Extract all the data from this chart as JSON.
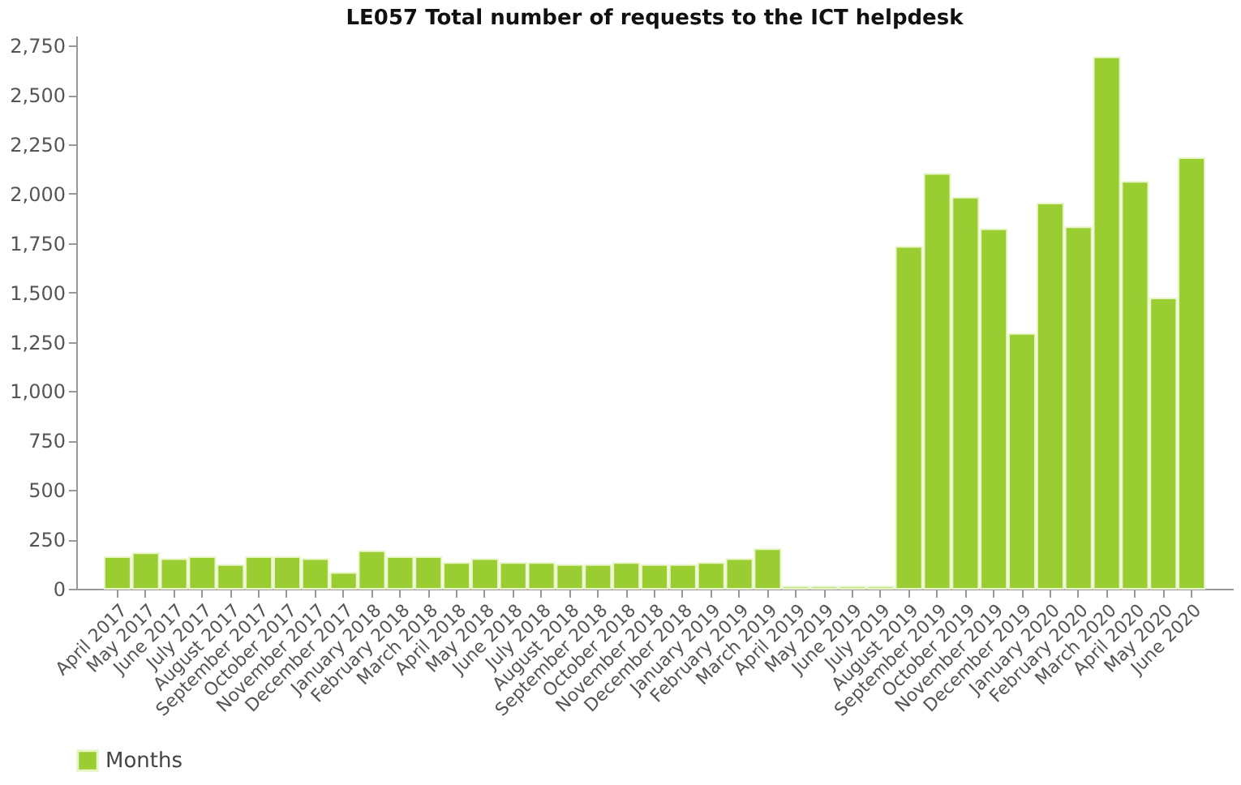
{
  "chart_data": {
    "type": "bar",
    "title": "LE057 Total number of requests to the ICT helpdesk",
    "categories": [
      "April 2017",
      "May 2017",
      "June 2017",
      "July 2017",
      "August 2017",
      "September 2017",
      "October 2017",
      "November 2017",
      "December 2017",
      "January 2018",
      "February 2018",
      "March 2018",
      "April 2018",
      "May 2018",
      "June 2018",
      "July 2018",
      "August 2018",
      "September 2018",
      "October 2018",
      "November 2018",
      "December 2018",
      "January 2019",
      "February 2019",
      "March 2019",
      "April 2019",
      "May 2019",
      "June 2019",
      "July 2019",
      "August 2019",
      "September 2019",
      "October 2019",
      "November 2019",
      "December 2019",
      "January 2020",
      "February 2020",
      "March 2020",
      "April 2020",
      "May 2020",
      "June 2020"
    ],
    "series": [
      {
        "name": "Months",
        "color": "#9acd32",
        "values": [
          160,
          180,
          150,
          160,
          120,
          160,
          160,
          150,
          80,
          190,
          160,
          160,
          130,
          150,
          130,
          130,
          120,
          120,
          130,
          120,
          120,
          130,
          150,
          200,
          10,
          10,
          10,
          10,
          1730,
          2100,
          1980,
          1820,
          1290,
          1950,
          1830,
          2690,
          2060,
          1470,
          2180
        ]
      }
    ],
    "ylim": [
      0,
      2800
    ],
    "yticks": [
      0,
      {
        "value": 250,
        "label": "250"
      },
      {
        "value": 500,
        "label": "500"
      },
      {
        "value": 750,
        "label": "750"
      },
      {
        "value": 1000,
        "label": "1,000"
      },
      {
        "value": 1250,
        "label": "1,250"
      },
      {
        "value": 1500,
        "label": "1,500"
      },
      {
        "value": 1750,
        "label": "1,750"
      },
      {
        "value": 2000,
        "label": "2,000"
      },
      {
        "value": 2250,
        "label": "2,250"
      },
      {
        "value": 2500,
        "label": "2,500"
      },
      {
        "value": 2750,
        "label": "2,750"
      }
    ],
    "grid": false,
    "legend": "bottom"
  }
}
